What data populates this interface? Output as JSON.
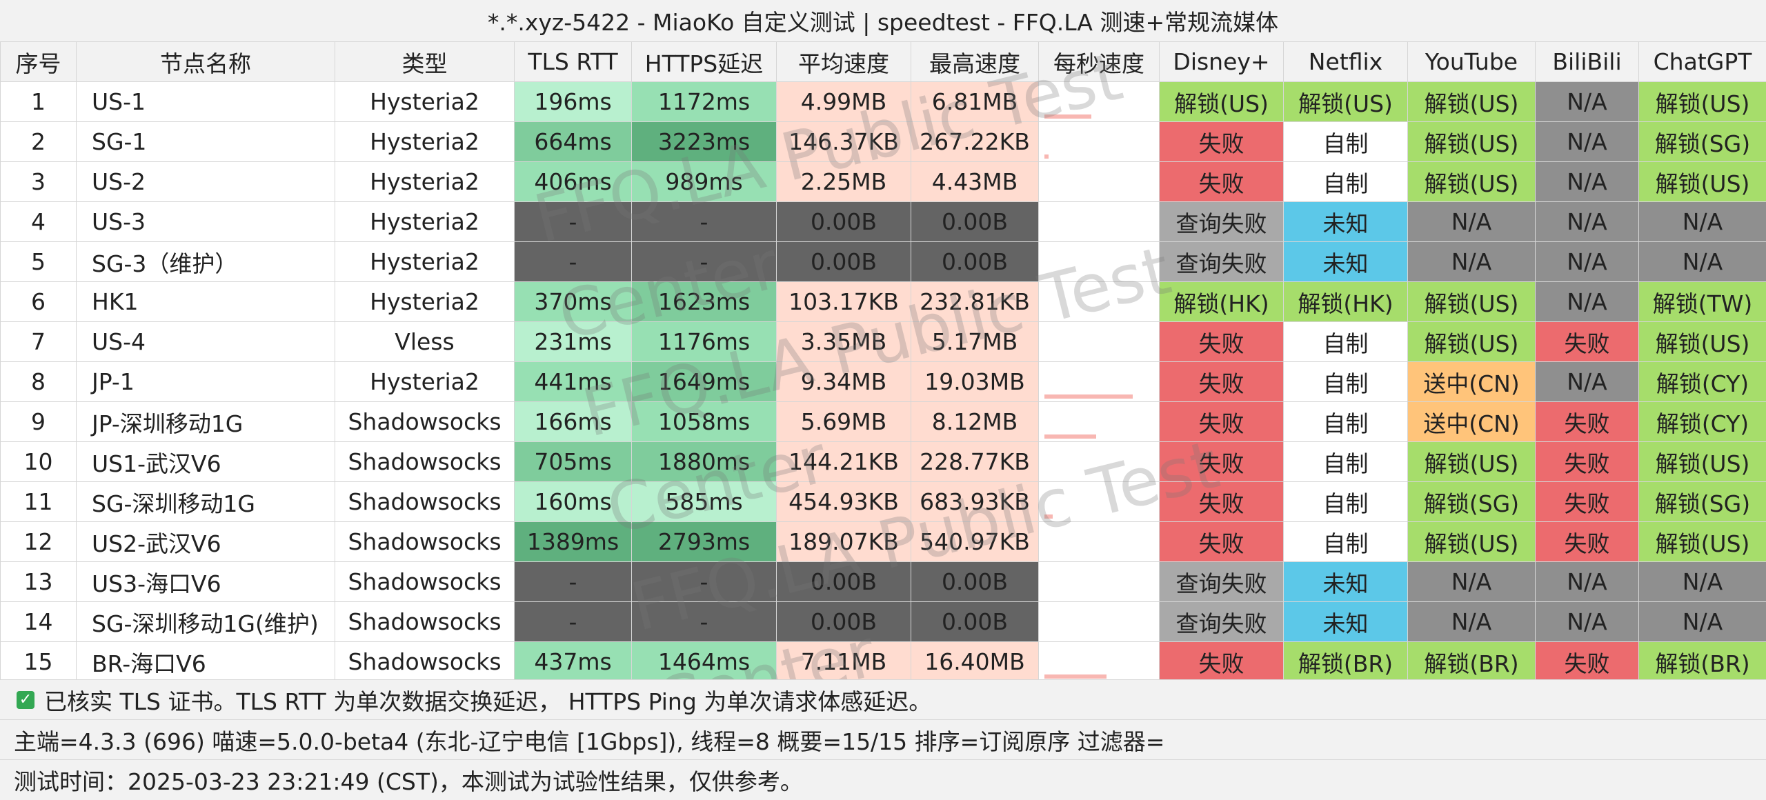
{
  "title": "*.*.xyz-5422 - MiaoKo 自定义测试 | speedtest - FFQ.LA 测速+常规流媒体",
  "watermark": [
    "FFQ.LA Public Test Center",
    "FFQ.LA Public Test Center",
    "FFQ.LA Public Test Center"
  ],
  "headers": [
    "序号",
    "节点名称",
    "类型",
    "TLS RTT",
    "HTTPS延迟",
    "平均速度",
    "最高速度",
    "每秒速度",
    "Disney+",
    "Netflix",
    "YouTube",
    "BiliBili",
    "ChatGPT"
  ],
  "rows": [
    {
      "no": "1",
      "name": "US-1",
      "type": "Hysteria2",
      "tls": "196ms",
      "https": "1172ms",
      "avg": "4.99MB",
      "max": "6.81MB",
      "spark": 0.45,
      "disney": "解锁(US)",
      "netflix": "解锁(US)",
      "youtube": "解锁(US)",
      "bili": "N/A",
      "gpt": "解锁(US)"
    },
    {
      "no": "2",
      "name": "SG-1",
      "type": "Hysteria2",
      "tls": "664ms",
      "https": "3223ms",
      "avg": "146.37KB",
      "max": "267.22KB",
      "spark": 0.04,
      "disney": "失败",
      "netflix": "自制",
      "youtube": "解锁(US)",
      "bili": "N/A",
      "gpt": "解锁(SG)"
    },
    {
      "no": "3",
      "name": "US-2",
      "type": "Hysteria2",
      "tls": "406ms",
      "https": "989ms",
      "avg": "2.25MB",
      "max": "4.43MB",
      "spark": 0.0,
      "disney": "失败",
      "netflix": "自制",
      "youtube": "解锁(US)",
      "bili": "N/A",
      "gpt": "解锁(US)"
    },
    {
      "no": "4",
      "name": "US-3",
      "type": "Hysteria2",
      "tls": "-",
      "https": "-",
      "avg": "0.00B",
      "max": "0.00B",
      "spark": 0.0,
      "disney": "查询失败",
      "netflix": "未知",
      "youtube": "N/A",
      "bili": "N/A",
      "gpt": "N/A"
    },
    {
      "no": "5",
      "name": "SG-3（维护）",
      "type": "Hysteria2",
      "tls": "-",
      "https": "-",
      "avg": "0.00B",
      "max": "0.00B",
      "spark": 0.0,
      "disney": "查询失败",
      "netflix": "未知",
      "youtube": "N/A",
      "bili": "N/A",
      "gpt": "N/A"
    },
    {
      "no": "6",
      "name": "HK1",
      "type": "Hysteria2",
      "tls": "370ms",
      "https": "1623ms",
      "avg": "103.17KB",
      "max": "232.81KB",
      "spark": 0.0,
      "disney": "解锁(HK)",
      "netflix": "解锁(HK)",
      "youtube": "解锁(US)",
      "bili": "N/A",
      "gpt": "解锁(TW)"
    },
    {
      "no": "7",
      "name": "US-4",
      "type": "Vless",
      "tls": "231ms",
      "https": "1176ms",
      "avg": "3.35MB",
      "max": "5.17MB",
      "spark": 0.0,
      "disney": "失败",
      "netflix": "自制",
      "youtube": "解锁(US)",
      "bili": "失败",
      "gpt": "解锁(US)"
    },
    {
      "no": "8",
      "name": "JP-1",
      "type": "Hysteria2",
      "tls": "441ms",
      "https": "1649ms",
      "avg": "9.34MB",
      "max": "19.03MB",
      "spark": 0.85,
      "disney": "失败",
      "netflix": "自制",
      "youtube": "送中(CN)",
      "bili": "N/A",
      "gpt": "解锁(CY)"
    },
    {
      "no": "9",
      "name": "JP-深圳移动1G",
      "type": "Shadowsocks",
      "tls": "166ms",
      "https": "1058ms",
      "avg": "5.69MB",
      "max": "8.12MB",
      "spark": 0.5,
      "disney": "失败",
      "netflix": "自制",
      "youtube": "送中(CN)",
      "bili": "失败",
      "gpt": "解锁(CY)"
    },
    {
      "no": "10",
      "name": "US1-武汉V6",
      "type": "Shadowsocks",
      "tls": "705ms",
      "https": "1880ms",
      "avg": "144.21KB",
      "max": "228.77KB",
      "spark": 0.0,
      "disney": "失败",
      "netflix": "自制",
      "youtube": "解锁(US)",
      "bili": "失败",
      "gpt": "解锁(US)"
    },
    {
      "no": "11",
      "name": "SG-深圳移动1G",
      "type": "Shadowsocks",
      "tls": "160ms",
      "https": "585ms",
      "avg": "454.93KB",
      "max": "683.93KB",
      "spark": 0.08,
      "disney": "失败",
      "netflix": "自制",
      "youtube": "解锁(SG)",
      "bili": "失败",
      "gpt": "解锁(SG)"
    },
    {
      "no": "12",
      "name": "US2-武汉V6",
      "type": "Shadowsocks",
      "tls": "1389ms",
      "https": "2793ms",
      "avg": "189.07KB",
      "max": "540.97KB",
      "spark": 0.0,
      "disney": "失败",
      "netflix": "自制",
      "youtube": "解锁(US)",
      "bili": "失败",
      "gpt": "解锁(US)"
    },
    {
      "no": "13",
      "name": "US3-海口V6",
      "type": "Shadowsocks",
      "tls": "-",
      "https": "-",
      "avg": "0.00B",
      "max": "0.00B",
      "spark": 0.0,
      "disney": "查询失败",
      "netflix": "未知",
      "youtube": "N/A",
      "bili": "N/A",
      "gpt": "N/A"
    },
    {
      "no": "14",
      "name": "SG-深圳移动1G(维护)",
      "type": "Shadowsocks",
      "tls": "-",
      "https": "-",
      "avg": "0.00B",
      "max": "0.00B",
      "spark": 0.0,
      "disney": "查询失败",
      "netflix": "未知",
      "youtube": "N/A",
      "bili": "N/A",
      "gpt": "N/A"
    },
    {
      "no": "15",
      "name": "BR-海口V6",
      "type": "Shadowsocks",
      "tls": "437ms",
      "https": "1464ms",
      "avg": "7.11MB",
      "max": "16.40MB",
      "spark": 0.6,
      "disney": "失败",
      "netflix": "解锁(BR)",
      "youtube": "解锁(BR)",
      "bili": "失败",
      "gpt": "解锁(BR)"
    }
  ],
  "footer": {
    "line1": "已核实 TLS 证书。TLS RTT 为单次数据交换延迟，  HTTPS Ping 为单次请求体感延迟。",
    "line2": "主端=4.3.3 (696) 喵速=5.0.0-beta4 (东北-辽宁电信 [1Gbps]), 线程=8 概要=15/15 排序=订阅原序 过滤器=",
    "line3": "测试时间：2025-03-23 23:21:49 (CST)，本测试为试验性结果，仅供参考。"
  },
  "colors": {
    "fail": "#ec6b6e",
    "unlock": "#a6dd6b",
    "na": "#8f8f8f",
    "query": "#a9a9a9",
    "unknown": "#5cc8e8",
    "cn": "#ffc47a",
    "self": "#ffffff",
    "latency_good": "#b8f0cf",
    "latency_mid": "#97e0b3",
    "latency_high": "#7fcc9c",
    "latency_worst": "#5fb07e",
    "empty": "#646464",
    "speed": "#ffdcd0"
  }
}
